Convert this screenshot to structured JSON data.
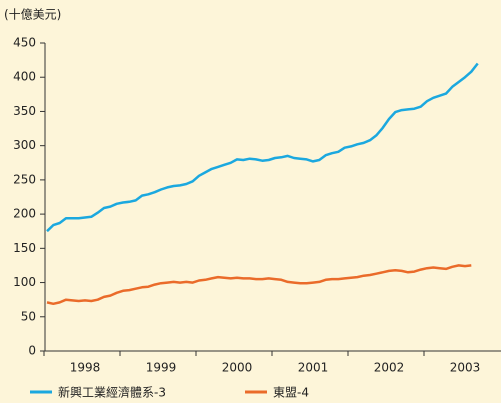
{
  "chart_data": {
    "type": "line",
    "y_label": "(十億美元)",
    "categories": [
      null,
      null,
      null,
      null,
      null,
      null,
      "1998",
      null,
      null,
      null,
      null,
      null,
      null,
      null,
      null,
      null,
      null,
      null,
      "1999",
      null,
      null,
      null,
      null,
      null,
      null,
      null,
      null,
      null,
      null,
      null,
      "2000",
      null,
      null,
      null,
      null,
      null,
      null,
      null,
      null,
      null,
      null,
      null,
      "2001",
      null,
      null,
      null,
      null,
      null,
      null,
      null,
      null,
      null,
      null,
      null,
      "2002",
      null,
      null,
      null,
      null,
      null,
      null,
      null,
      null,
      null,
      null,
      null,
      "2003",
      null,
      null
    ],
    "series": [
      {
        "name": "新興工業經濟體系-3",
        "color": "#1ba8df",
        "values": [
          175,
          184,
          187,
          194,
          194,
          194,
          195,
          196,
          202,
          209,
          211,
          215,
          217,
          218,
          220,
          227,
          229,
          232,
          236,
          239,
          241,
          242,
          244,
          248,
          256,
          261,
          266,
          269,
          272,
          275,
          280,
          279,
          281,
          280,
          278,
          279,
          282,
          283,
          285,
          282,
          281,
          280,
          277,
          279,
          286,
          289,
          291,
          297,
          299,
          302,
          304,
          308,
          315,
          326,
          339,
          349,
          352,
          353,
          354,
          357,
          365,
          370,
          373,
          376,
          386,
          393,
          400,
          408,
          420
        ]
      },
      {
        "name": "東盟-4",
        "color": "#ea6b2a",
        "values": [
          71,
          69,
          71,
          75,
          74,
          73,
          74,
          73,
          75,
          79,
          81,
          85,
          88,
          89,
          91,
          93,
          94,
          97,
          99,
          100,
          101,
          100,
          101,
          100,
          103,
          104,
          106,
          108,
          107,
          106,
          107,
          106,
          106,
          105,
          105,
          106,
          105,
          104,
          101,
          100,
          99,
          99,
          100,
          101,
          104,
          105,
          105,
          106,
          107,
          108,
          110,
          111,
          113,
          115,
          117,
          118,
          117,
          115,
          116,
          119,
          121,
          122,
          121,
          120,
          123,
          125,
          124,
          125,
          null
        ]
      }
    ],
    "ylim": [
      0,
      450
    ],
    "yticks": [
      0,
      50,
      100,
      150,
      200,
      250,
      300,
      350,
      400,
      450
    ]
  }
}
